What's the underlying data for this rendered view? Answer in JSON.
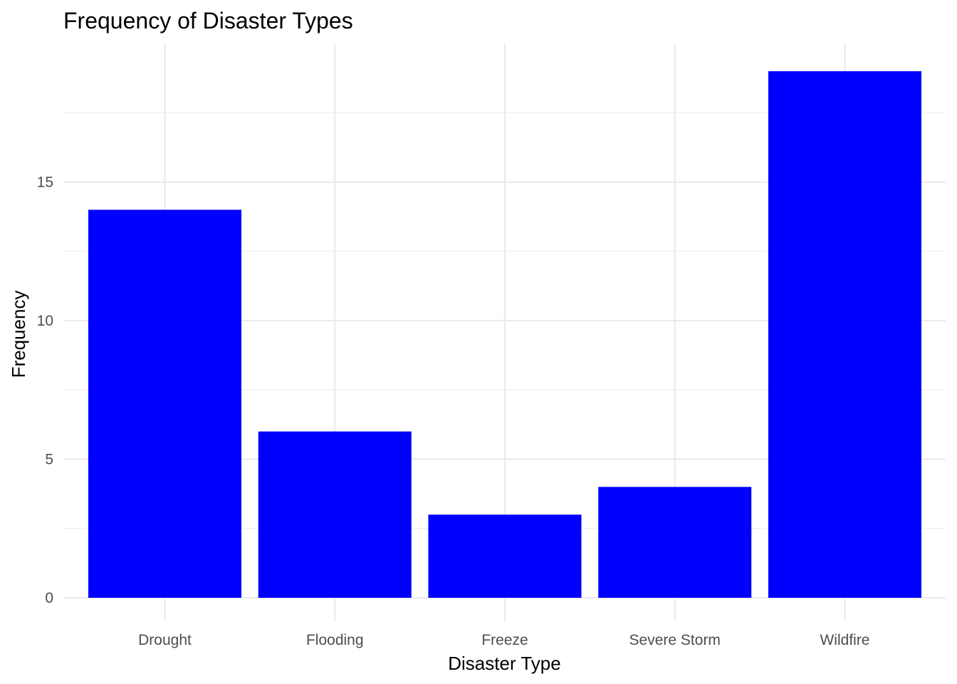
{
  "chart_data": {
    "type": "bar",
    "title": "Frequency of Disaster Types",
    "xlabel": "Disaster Type",
    "ylabel": "Frequency",
    "categories": [
      "Drought",
      "Flooding",
      "Freeze",
      "Severe Storm",
      "Wildfire"
    ],
    "values": [
      14,
      6,
      3,
      4,
      19
    ],
    "ylim": [
      0,
      20
    ],
    "yticks": [
      0,
      5,
      10,
      15
    ],
    "grid": true,
    "bar_color": "#0000ff",
    "grid_color": "#ebebeb",
    "background": "#ffffff"
  }
}
